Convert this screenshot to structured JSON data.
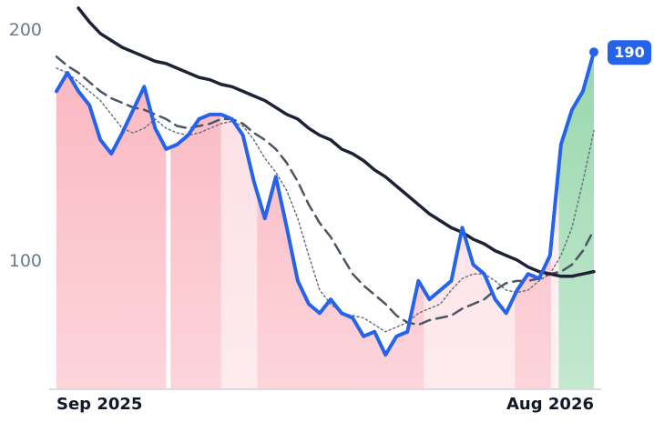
{
  "chart_data": {
    "type": "line",
    "xlim": [
      0,
      49
    ],
    "ylim": [
      44.5,
      212.5
    ],
    "xticks": [
      {
        "value": 0,
        "label": "Sep 2025"
      },
      {
        "value": 49,
        "label": "Aug 2026"
      }
    ],
    "yticks": [
      100,
      200
    ],
    "series": [
      {
        "color": "#2563eb",
        "style": "solid",
        "width": 4,
        "values": [
          173,
          181,
          173,
          167,
          152,
          146,
          155,
          165,
          175,
          157,
          148,
          150,
          154,
          161,
          163,
          163,
          161,
          154,
          134,
          118,
          136,
          114,
          91,
          81,
          77,
          83,
          77,
          75,
          67,
          69,
          59,
          67,
          69,
          91,
          83,
          87,
          91,
          114,
          98,
          94,
          83,
          77,
          87,
          94,
          92,
          102,
          150,
          165,
          173,
          190
        ]
      },
      {
        "color": "#1e2235",
        "style": "solid",
        "width": 3.5,
        "values": [
          null,
          null,
          209,
          203,
          198,
          195,
          192,
          190,
          188,
          186,
          185,
          183,
          181,
          179,
          178,
          176,
          175,
          173,
          171,
          169,
          166,
          163,
          161,
          157,
          154,
          152,
          148,
          146,
          143,
          139,
          136,
          132,
          128,
          124,
          120,
          117,
          114,
          112,
          109,
          107,
          104,
          102,
          100,
          97,
          95,
          94,
          93,
          93,
          94,
          95
        ]
      },
      {
        "color": "#4b5563",
        "style": "dashed",
        "width": 2.5,
        "values": [
          188,
          184,
          181,
          177,
          173,
          170,
          168,
          166,
          165,
          163,
          161,
          158,
          157,
          158,
          159,
          161,
          161,
          159,
          155,
          152,
          148,
          142,
          134,
          124,
          116,
          110,
          102,
          94,
          89,
          85,
          81,
          76,
          73,
          72,
          74,
          75,
          76,
          79,
          81,
          83,
          87,
          90,
          91,
          91,
          92,
          94,
          95,
          98,
          104,
          113
        ]
      },
      {
        "color": "#6b7280",
        "style": "dotted",
        "width": 1.5,
        "values": [
          183,
          181,
          177,
          173,
          169,
          163,
          157,
          155,
          157,
          161,
          157,
          155,
          154,
          155,
          157,
          159,
          160,
          158,
          152,
          144,
          138,
          130,
          118,
          102,
          87,
          81,
          77,
          76,
          75,
          72,
          69,
          71,
          73,
          77,
          79,
          81,
          87,
          92,
          94,
          94,
          91,
          87,
          86,
          87,
          91,
          94,
          102,
          114,
          134,
          156
        ]
      }
    ],
    "regions": [
      {
        "from": 0,
        "to": 10,
        "color": "#f9a4b2"
      },
      {
        "from": 10.4,
        "to": 15,
        "color": "#f9a4b2"
      },
      {
        "from": 15,
        "to": 18.3,
        "color": "#fcd5dc"
      },
      {
        "from": 18.3,
        "to": 33.5,
        "color": "#f9a4b2"
      },
      {
        "from": 33.5,
        "to": 41.8,
        "color": "#fcd5dc"
      },
      {
        "from": 41.8,
        "to": 45.1,
        "color": "#f9a4b2"
      },
      {
        "from": 45.1,
        "to": 45.8,
        "color": "#fde3e8"
      },
      {
        "from": 45.8,
        "to": 49,
        "color": "#7fce99"
      }
    ]
  }
}
